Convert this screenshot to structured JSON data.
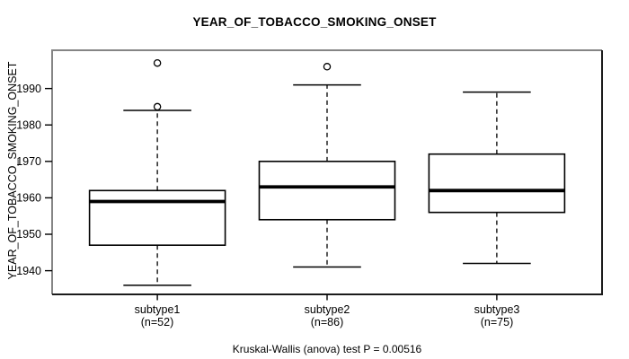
{
  "chart_data": {
    "type": "boxplot",
    "title": "YEAR_OF_TOBACCO_SMOKING_ONSET",
    "ylabel": "YEAR_OF_TOBACCO_SMOKING_ONSET",
    "xlabel": "",
    "caption": "Kruskal-Wallis (anova) test P = 0.00516",
    "p_value": 0.00516,
    "grid": false,
    "legend": false,
    "ylim": [
      1933.5,
      2000.5
    ],
    "y_ticks": [
      1940,
      1950,
      1960,
      1970,
      1980,
      1990
    ],
    "groups": [
      {
        "label": "subtype1",
        "sublabel": "(n=52)",
        "n": 52,
        "whisker_low": 1936,
        "q1": 1947,
        "median": 1959,
        "q3": 1962,
        "whisker_high": 1984,
        "outliers": [
          1985,
          1997
        ]
      },
      {
        "label": "subtype2",
        "sublabel": "(n=86)",
        "n": 86,
        "whisker_low": 1941,
        "q1": 1954,
        "median": 1963,
        "q3": 1970,
        "whisker_high": 1991,
        "outliers": [
          1996
        ]
      },
      {
        "label": "subtype3",
        "sublabel": "(n=75)",
        "n": 75,
        "whisker_low": 1942,
        "q1": 1956,
        "median": 1962,
        "q3": 1972,
        "whisker_high": 1989,
        "outliers": []
      }
    ],
    "colors": {
      "line": "#000000",
      "box_fill": "#ffffff",
      "frame_light": "#858585",
      "frame_dark": "#1b1b1b"
    }
  }
}
